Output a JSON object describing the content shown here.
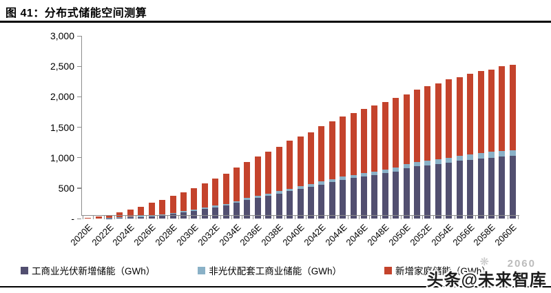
{
  "figure": {
    "title": "图 41：分布式储能空间测算"
  },
  "watermark": {
    "text": "头条@未来智库",
    "faint_text": "2060",
    "icon": "firework-sparkle-icon"
  },
  "chart_data": {
    "type": "bar",
    "stacked": true,
    "title": "分布式储能空间测算",
    "unit": "GWh",
    "grid": false,
    "legend_position": "bottom",
    "ylim": [
      0,
      3000
    ],
    "y_tick_interval": 500,
    "y_tick_labels": [
      "-",
      "500",
      "1,000",
      "1,500",
      "2,000",
      "2,500",
      "3,000"
    ],
    "x_label_step": 2,
    "categories": [
      "2020E",
      "2021E",
      "2022E",
      "2023E",
      "2024E",
      "2025E",
      "2026E",
      "2027E",
      "2028E",
      "2029E",
      "2030E",
      "2031E",
      "2032E",
      "2033E",
      "2034E",
      "2035E",
      "2036E",
      "2037E",
      "2038E",
      "2039E",
      "2040E",
      "2041E",
      "2042E",
      "2043E",
      "2044E",
      "2045E",
      "2046E",
      "2047E",
      "2048E",
      "2049E",
      "2050E",
      "2051E",
      "2052E",
      "2053E",
      "2054E",
      "2055E",
      "2056E",
      "2057E",
      "2058E",
      "2059E",
      "2060E"
    ],
    "series": [
      {
        "name": "工商业光伏新增储能（GWh）",
        "color": "#524F70",
        "values": [
          0,
          0,
          5,
          10,
          20,
          28,
          38,
          55,
          75,
          100,
          125,
          155,
          185,
          215,
          255,
          305,
          340,
          375,
          410,
          450,
          490,
          520,
          560,
          600,
          635,
          665,
          690,
          715,
          745,
          775,
          830,
          855,
          875,
          895,
          915,
          950,
          965,
          985,
          1000,
          1015,
          1025
        ]
      },
      {
        "name": "非光伏配套工商业储能（GWh）",
        "color": "#8AB1C7",
        "values": [
          0,
          0,
          10,
          10,
          10,
          12,
          14,
          16,
          18,
          20,
          22,
          24,
          26,
          28,
          30,
          32,
          34,
          36,
          38,
          40,
          42,
          44,
          46,
          48,
          50,
          52,
          54,
          56,
          60,
          64,
          68,
          72,
          75,
          78,
          82,
          85,
          88,
          92,
          95,
          98,
          100
        ]
      },
      {
        "name": "新增家庭储能（GWh）",
        "color": "#C4432C",
        "values": [
          15,
          30,
          45,
          80,
          115,
          150,
          210,
          240,
          280,
          310,
          355,
          400,
          450,
          495,
          555,
          595,
          645,
          690,
          730,
          790,
          820,
          855,
          915,
          950,
          985,
          1020,
          1055,
          1080,
          1105,
          1140,
          1140,
          1190,
          1220,
          1245,
          1295,
          1285,
          1325,
          1345,
          1350,
          1385,
          1395
        ]
      }
    ]
  },
  "colors": {
    "axis": "#8c8c8c",
    "text": "#000000",
    "rule": "#000000"
  }
}
